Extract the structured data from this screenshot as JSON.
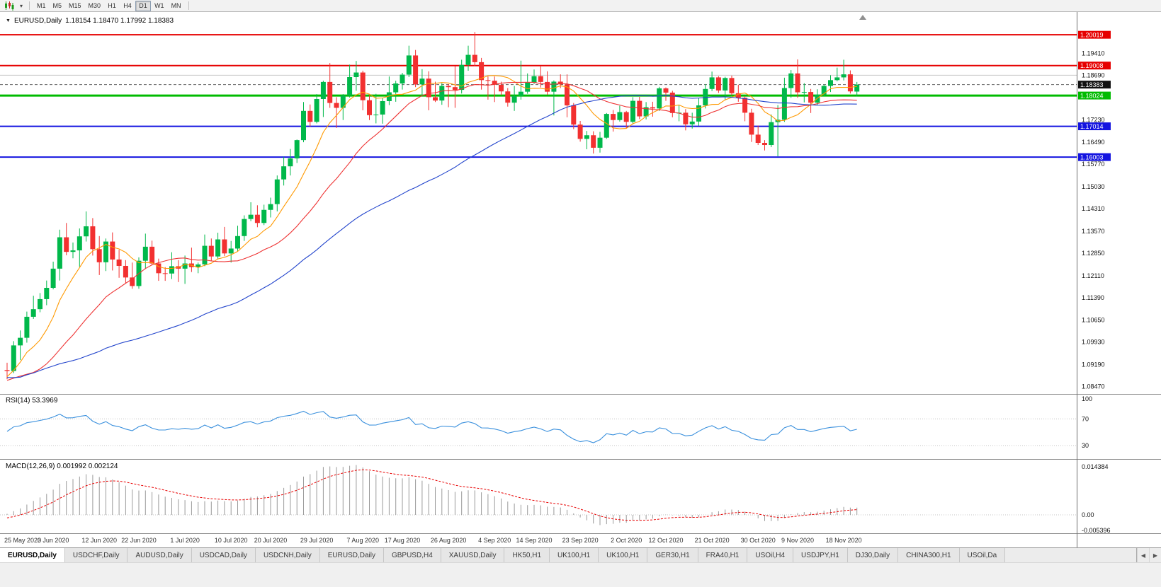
{
  "toolbar": {
    "chart_icon": "candlestick-chart-icon",
    "timeframes": [
      {
        "label": "M1",
        "active": false
      },
      {
        "label": "M5",
        "active": false
      },
      {
        "label": "M15",
        "active": false
      },
      {
        "label": "M30",
        "active": false
      },
      {
        "label": "H1",
        "active": false
      },
      {
        "label": "H4",
        "active": false
      },
      {
        "label": "D1",
        "active": true
      },
      {
        "label": "W1",
        "active": false
      },
      {
        "label": "MN",
        "active": false
      }
    ]
  },
  "chart": {
    "symbol": "EURUSD,Daily",
    "ohlc_text": "1.18154 1.18470 1.17992 1.18383",
    "colors": {
      "up_candle": "#00b84a",
      "down_candle": "#f23030",
      "background": "#ffffff"
    },
    "price_lines": [
      {
        "value": 1.20019,
        "label": "1.20019",
        "color": "#e60000",
        "width": 2
      },
      {
        "value": 1.19008,
        "label": "1.19008",
        "color": "#e60000",
        "width": 2
      },
      {
        "value": 1.18024,
        "label": "1.18024",
        "color": "#00bb00",
        "width": 3
      },
      {
        "value": 1.17014,
        "label": "1.17014",
        "color": "#1414e0",
        "width": 2
      },
      {
        "value": 1.16003,
        "label": "1.16003",
        "color": "#1414e0",
        "width": 2
      }
    ],
    "current_price": {
      "value": 1.18383,
      "label": "1.18383",
      "tag_color": "#111111"
    },
    "extra_lines": [
      {
        "value": 1.1869,
        "color": "#c8c8c8",
        "width": 1
      }
    ],
    "y_ticks": [
      "1.19410",
      "1.18690",
      "1.17230",
      "1.16490",
      "1.15770",
      "1.15030",
      "1.14310",
      "1.13570",
      "1.12850",
      "1.12110",
      "1.11390",
      "1.10650",
      "1.09930",
      "1.09190",
      "1.08470"
    ],
    "x_labels": [
      {
        "text": "25 May 2020",
        "i": 0
      },
      {
        "text": "3 Jun 2020",
        "i": 7
      },
      {
        "text": "12 Jun 2020",
        "i": 14
      },
      {
        "text": "22 Jun 2020",
        "i": 20
      },
      {
        "text": "1 Jul 2020",
        "i": 27
      },
      {
        "text": "10 Jul 2020",
        "i": 34
      },
      {
        "text": "20 Jul 2020",
        "i": 40
      },
      {
        "text": "29 Jul 2020",
        "i": 47
      },
      {
        "text": "7 Aug 2020",
        "i": 54
      },
      {
        "text": "17 Aug 2020",
        "i": 60
      },
      {
        "text": "26 Aug 2020",
        "i": 67
      },
      {
        "text": "4 Sep 2020",
        "i": 74
      },
      {
        "text": "14 Sep 2020",
        "i": 80
      },
      {
        "text": "23 Sep 2020",
        "i": 87
      },
      {
        "text": "2 Oct 2020",
        "i": 94
      },
      {
        "text": "12 Oct 2020",
        "i": 100
      },
      {
        "text": "21 Oct 2020",
        "i": 107
      },
      {
        "text": "30 Oct 2020",
        "i": 114
      },
      {
        "text": "9 Nov 2020",
        "i": 120
      },
      {
        "text": "18 Nov 2020",
        "i": 127
      }
    ]
  },
  "rsi": {
    "title": "RSI(14) 53.3969",
    "period": 14,
    "value": "53.3969",
    "line_color": "#3a90dd",
    "levels": [
      70,
      30
    ],
    "ticks": [
      {
        "label": "100",
        "v": 100
      },
      {
        "label": "70",
        "v": 70
      },
      {
        "label": "30",
        "v": 30
      }
    ]
  },
  "macd": {
    "title": "MACD(12,26,9) 0.001992 0.002124",
    "macd_value": "0.001992",
    "signal_value": "0.002124",
    "hist_color": "#9a9a9a",
    "signal_color": "#e80000",
    "ticks": [
      {
        "label": "0.014384",
        "v": 0.014384
      },
      {
        "label": "0.00",
        "v": 0
      },
      {
        "label": "-0.005396",
        "v": -0.005396
      }
    ]
  },
  "tabs": [
    {
      "label": "EURUSD,Daily",
      "active": true
    },
    {
      "label": "USDCHF,Daily",
      "active": false
    },
    {
      "label": "AUDUSD,Daily",
      "active": false
    },
    {
      "label": "USDCAD,Daily",
      "active": false
    },
    {
      "label": "USDCNH,Daily",
      "active": false
    },
    {
      "label": "EURUSD,Daily",
      "active": false
    },
    {
      "label": "GBPUSD,H4",
      "active": false
    },
    {
      "label": "XAUUSD,Daily",
      "active": false
    },
    {
      "label": "HK50,H1",
      "active": false
    },
    {
      "label": "UK100,H1",
      "active": false
    },
    {
      "label": "UK100,H1",
      "active": false
    },
    {
      "label": "GER30,H1",
      "active": false
    },
    {
      "label": "FRA40,H1",
      "active": false
    },
    {
      "label": "USOil,H4",
      "active": false
    },
    {
      "label": "USDJPY,H1",
      "active": false
    },
    {
      "label": "DJ30,Daily",
      "active": false
    },
    {
      "label": "CHINA300,H1",
      "active": false
    },
    {
      "label": "USOil,Da",
      "active": false
    }
  ],
  "tab_arrows": {
    "left": "◀",
    "right": "▶"
  },
  "chart_data": {
    "type": "candlestick",
    "symbol": "EURUSD",
    "timeframe": "Daily",
    "last_ohlc": {
      "open": 1.18154,
      "high": 1.1847,
      "low": 1.17992,
      "close": 1.18383
    },
    "moving_averages": [
      {
        "period": 8,
        "color": "#ff9900"
      },
      {
        "period": 20,
        "color": "#ee3333"
      },
      {
        "period": 50,
        "color": "#2244cc"
      }
    ],
    "indicators": [
      {
        "name": "RSI",
        "period": 14,
        "last": 53.3969
      },
      {
        "name": "MACD",
        "fast": 12,
        "slow": 26,
        "signal": 9,
        "last_macd": 0.001992,
        "last_signal": 0.002124
      }
    ],
    "pre_closes": [
      1.1118,
      1.0998,
      1.0934,
      1.0692,
      1.0801,
      1.0723,
      1.0786,
      1.0885,
      1.096,
      1.1033,
      1.1031,
      1.103,
      1.0964,
      1.0911,
      1.0857,
      1.0801,
      1.0891,
      1.0862,
      1.0889,
      1.0932,
      1.0936,
      1.098,
      1.0913,
      1.0869,
      1.0857,
      1.0879,
      1.0875,
      1.082,
      1.0822,
      1.0782,
      1.0775,
      1.0834,
      1.0872,
      1.0955,
      1.098,
      1.0905,
      1.084,
      1.0794,
      1.0832,
      1.0795,
      1.0839,
      1.0808,
      1.0853,
      1.0815,
      1.0794,
      1.0817,
      1.0952,
      1.0958,
      1.0901,
      1.09
    ],
    "candles": [
      [
        1.0901,
        1.0925,
        1.0871,
        1.0898
      ],
      [
        1.0898,
        1.0996,
        1.0891,
        1.0982
      ],
      [
        1.0982,
        1.1031,
        1.0934,
        1.1007
      ],
      [
        1.1007,
        1.1093,
        1.0991,
        1.1076
      ],
      [
        1.1076,
        1.1145,
        1.1069,
        1.1101
      ],
      [
        1.1101,
        1.1154,
        1.1091,
        1.1134
      ],
      [
        1.1134,
        1.1195,
        1.1114,
        1.1171
      ],
      [
        1.1171,
        1.1257,
        1.1166,
        1.1234
      ],
      [
        1.1234,
        1.1362,
        1.1195,
        1.1337
      ],
      [
        1.1337,
        1.1384,
        1.1278,
        1.1289
      ],
      [
        1.1289,
        1.132,
        1.1268,
        1.1294
      ],
      [
        1.1294,
        1.1366,
        1.124,
        1.134
      ],
      [
        1.134,
        1.1422,
        1.1323,
        1.1373
      ],
      [
        1.1373,
        1.14,
        1.1277,
        1.1298
      ],
      [
        1.1298,
        1.1341,
        1.1213,
        1.1255
      ],
      [
        1.1255,
        1.1333,
        1.1226,
        1.1323
      ],
      [
        1.1323,
        1.1353,
        1.1228,
        1.1264
      ],
      [
        1.1264,
        1.1296,
        1.1204,
        1.1243
      ],
      [
        1.1243,
        1.1262,
        1.1185,
        1.1205
      ],
      [
        1.1205,
        1.1254,
        1.1168,
        1.1177
      ],
      [
        1.1177,
        1.1271,
        1.1168,
        1.126
      ],
      [
        1.126,
        1.1349,
        1.1233,
        1.1306
      ],
      [
        1.1306,
        1.1326,
        1.1245,
        1.1251
      ],
      [
        1.1251,
        1.1267,
        1.1194,
        1.1219
      ],
      [
        1.1219,
        1.1239,
        1.1194,
        1.1218
      ],
      [
        1.1218,
        1.1288,
        1.12,
        1.1242
      ],
      [
        1.1242,
        1.1262,
        1.119,
        1.1234
      ],
      [
        1.1234,
        1.1277,
        1.1184,
        1.1251
      ],
      [
        1.1251,
        1.1303,
        1.1223,
        1.1239
      ],
      [
        1.1239,
        1.1254,
        1.1219,
        1.1248
      ],
      [
        1.1248,
        1.1346,
        1.1242,
        1.1309
      ],
      [
        1.1309,
        1.1333,
        1.1259,
        1.1274
      ],
      [
        1.1274,
        1.1352,
        1.1265,
        1.133
      ],
      [
        1.133,
        1.1371,
        1.1275,
        1.1284
      ],
      [
        1.1284,
        1.1325,
        1.1254,
        1.13
      ],
      [
        1.13,
        1.1375,
        1.1292,
        1.1341
      ],
      [
        1.1341,
        1.1409,
        1.1325,
        1.1397
      ],
      [
        1.1397,
        1.1452,
        1.139,
        1.1411
      ],
      [
        1.1411,
        1.1442,
        1.137,
        1.1384
      ],
      [
        1.1384,
        1.1444,
        1.1377,
        1.1427
      ],
      [
        1.1427,
        1.1467,
        1.1402,
        1.1446
      ],
      [
        1.1446,
        1.154,
        1.1422,
        1.1527
      ],
      [
        1.1527,
        1.1601,
        1.1507,
        1.157
      ],
      [
        1.157,
        1.1627,
        1.154,
        1.1596
      ],
      [
        1.1596,
        1.1658,
        1.1581,
        1.1656
      ],
      [
        1.1656,
        1.1781,
        1.1649,
        1.1752
      ],
      [
        1.1752,
        1.1773,
        1.17,
        1.1716
      ],
      [
        1.1716,
        1.1807,
        1.1711,
        1.1791
      ],
      [
        1.1791,
        1.1851,
        1.1732,
        1.1847
      ],
      [
        1.1847,
        1.1909,
        1.1762,
        1.1778
      ],
      [
        1.1778,
        1.1797,
        1.1696,
        1.1762
      ],
      [
        1.1762,
        1.1807,
        1.1722,
        1.1803
      ],
      [
        1.1803,
        1.1904,
        1.1796,
        1.1863
      ],
      [
        1.1863,
        1.1916,
        1.1818,
        1.1878
      ],
      [
        1.1878,
        1.1884,
        1.1754,
        1.1787
      ],
      [
        1.1787,
        1.1804,
        1.1722,
        1.1738
      ],
      [
        1.1738,
        1.1808,
        1.1711,
        1.174
      ],
      [
        1.174,
        1.1794,
        1.171,
        1.1784
      ],
      [
        1.1784,
        1.1865,
        1.1771,
        1.1813
      ],
      [
        1.1813,
        1.1851,
        1.1782,
        1.1842
      ],
      [
        1.1842,
        1.1877,
        1.1822,
        1.1871
      ],
      [
        1.1871,
        1.1966,
        1.1863,
        1.1934
      ],
      [
        1.1934,
        1.1952,
        1.183,
        1.1839
      ],
      [
        1.1839,
        1.1889,
        1.1804,
        1.1858
      ],
      [
        1.1858,
        1.1882,
        1.1754,
        1.1797
      ],
      [
        1.1797,
        1.1848,
        1.1781,
        1.1786
      ],
      [
        1.1786,
        1.1843,
        1.1772,
        1.1834
      ],
      [
        1.1834,
        1.184,
        1.1764,
        1.183
      ],
      [
        1.183,
        1.1899,
        1.1762,
        1.1821
      ],
      [
        1.1821,
        1.192,
        1.1809,
        1.1903
      ],
      [
        1.1903,
        1.1966,
        1.1884,
        1.1936
      ],
      [
        1.1936,
        1.2011,
        1.1899,
        1.1912
      ],
      [
        1.1912,
        1.1926,
        1.1822,
        1.1853
      ],
      [
        1.1853,
        1.1865,
        1.1789,
        1.1851
      ],
      [
        1.1851,
        1.1865,
        1.1781,
        1.1838
      ],
      [
        1.1838,
        1.1848,
        1.1804,
        1.1816
      ],
      [
        1.1816,
        1.1827,
        1.1766,
        1.1779
      ],
      [
        1.1779,
        1.1834,
        1.1752,
        1.1801
      ],
      [
        1.1801,
        1.1917,
        1.1789,
        1.1815
      ],
      [
        1.1815,
        1.1875,
        1.1808,
        1.1845
      ],
      [
        1.1845,
        1.1888,
        1.184,
        1.1866
      ],
      [
        1.1866,
        1.19,
        1.1829,
        1.1847
      ],
      [
        1.1847,
        1.1882,
        1.1805,
        1.1815
      ],
      [
        1.1815,
        1.1852,
        1.1737,
        1.1848
      ],
      [
        1.1848,
        1.1872,
        1.1827,
        1.1839
      ],
      [
        1.1839,
        1.1872,
        1.1731,
        1.177
      ],
      [
        1.177,
        1.1778,
        1.1692,
        1.1707
      ],
      [
        1.1707,
        1.1719,
        1.1651,
        1.166
      ],
      [
        1.166,
        1.1686,
        1.1626,
        1.1672
      ],
      [
        1.1672,
        1.1685,
        1.1612,
        1.1631
      ],
      [
        1.1631,
        1.1683,
        1.1615,
        1.1664
      ],
      [
        1.1664,
        1.1745,
        1.166,
        1.1742
      ],
      [
        1.1742,
        1.1755,
        1.1684,
        1.1722
      ],
      [
        1.1722,
        1.1769,
        1.1717,
        1.1748
      ],
      [
        1.1748,
        1.1752,
        1.1695,
        1.1716
      ],
      [
        1.1716,
        1.1797,
        1.1708,
        1.1785
      ],
      [
        1.1785,
        1.1798,
        1.1725,
        1.1734
      ],
      [
        1.1734,
        1.1781,
        1.1724,
        1.1764
      ],
      [
        1.1764,
        1.1782,
        1.1733,
        1.176
      ],
      [
        1.176,
        1.1831,
        1.1752,
        1.1826
      ],
      [
        1.1826,
        1.1829,
        1.1785,
        1.1812
      ],
      [
        1.1812,
        1.1818,
        1.1731,
        1.1745
      ],
      [
        1.1745,
        1.1771,
        1.1718,
        1.1746
      ],
      [
        1.1746,
        1.1758,
        1.1688,
        1.1708
      ],
      [
        1.1708,
        1.1746,
        1.1694,
        1.1717
      ],
      [
        1.1717,
        1.1794,
        1.1703,
        1.177
      ],
      [
        1.177,
        1.184,
        1.176,
        1.1824
      ],
      [
        1.1824,
        1.1881,
        1.1817,
        1.1862
      ],
      [
        1.1862,
        1.1866,
        1.1811,
        1.1819
      ],
      [
        1.1819,
        1.1864,
        1.1787,
        1.186
      ],
      [
        1.186,
        1.1868,
        1.1803,
        1.181
      ],
      [
        1.181,
        1.1838,
        1.1782,
        1.1795
      ],
      [
        1.1795,
        1.18,
        1.1718,
        1.1746
      ],
      [
        1.1746,
        1.1759,
        1.165,
        1.1674
      ],
      [
        1.1674,
        1.1704,
        1.164,
        1.1647
      ],
      [
        1.1647,
        1.1656,
        1.1622,
        1.164
      ],
      [
        1.164,
        1.174,
        1.1633,
        1.1715
      ],
      [
        1.1715,
        1.1771,
        1.1603,
        1.1723
      ],
      [
        1.1723,
        1.1861,
        1.1716,
        1.1827
      ],
      [
        1.1827,
        1.1886,
        1.1795,
        1.1875
      ],
      [
        1.1875,
        1.1921,
        1.1795,
        1.1813
      ],
      [
        1.1813,
        1.1843,
        1.178,
        1.1814
      ],
      [
        1.1814,
        1.1824,
        1.1745,
        1.1779
      ],
      [
        1.1779,
        1.1823,
        1.1771,
        1.1805
      ],
      [
        1.1805,
        1.1839,
        1.1799,
        1.1834
      ],
      [
        1.1834,
        1.1869,
        1.1814,
        1.1853
      ],
      [
        1.1853,
        1.1894,
        1.1849,
        1.1862
      ],
      [
        1.1862,
        1.192,
        1.1852,
        1.1872
      ],
      [
        1.1872,
        1.1885,
        1.1809,
        1.1816
      ],
      [
        1.18154,
        1.1847,
        1.17992,
        1.18383
      ]
    ]
  }
}
